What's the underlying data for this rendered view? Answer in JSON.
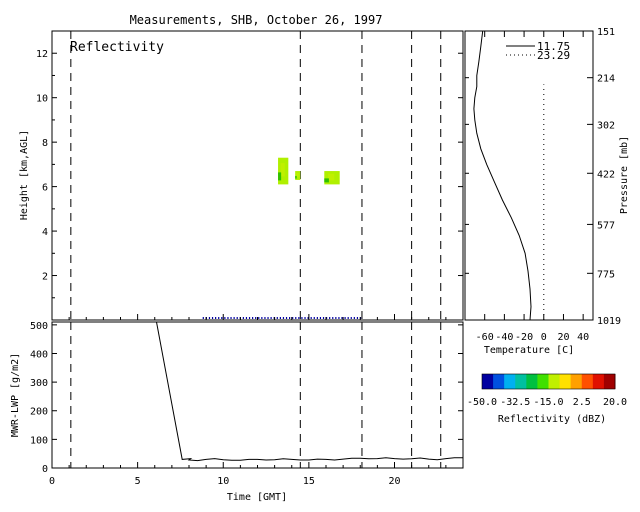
{
  "title": "Measurements, SHB, October 26, 1997",
  "colors": {
    "background": "#ffffff",
    "axes": "#000000",
    "colorbar": [
      "#0000a0",
      "#0050e0",
      "#00b0f0",
      "#00c0a0",
      "#00c040",
      "#40e000",
      "#c0f000",
      "#ffe000",
      "#ffa000",
      "#ff5000",
      "#e01000",
      "#a00000"
    ]
  },
  "chart_data": [
    {
      "type": "heatmap",
      "panel_label": "Reflectivity",
      "ylabel": "Height [km,AGL]",
      "xlim": [
        0,
        24
      ],
      "ylim": [
        0,
        13
      ],
      "yticks": [
        "2",
        "4",
        "6",
        "8",
        "10",
        "12"
      ],
      "right_axis": {
        "label": "Pressure [mb]",
        "ticks": [
          {
            "label": "151",
            "h": 13.0
          },
          {
            "label": "214",
            "h": 10.9
          },
          {
            "label": "302",
            "h": 8.8
          },
          {
            "label": "422",
            "h": 6.6
          },
          {
            "label": "577",
            "h": 4.3
          },
          {
            "label": "775",
            "h": 2.1
          },
          {
            "label": "1019",
            "h": 0.0
          }
        ]
      },
      "echoes": [
        {
          "x": [
            13.2,
            13.8
          ],
          "y": [
            6.1,
            7.3
          ],
          "dbz": -10
        },
        {
          "x": [
            14.2,
            14.5
          ],
          "y": [
            6.3,
            6.7
          ],
          "dbz": -15
        },
        {
          "x": [
            15.9,
            16.8
          ],
          "y": [
            6.1,
            6.7
          ],
          "dbz": -12
        }
      ],
      "near_surface_echo": {
        "x": [
          8.8,
          18.0
        ],
        "y": 0.0,
        "dbz": -45
      },
      "dashed_time_lines": [
        1.1,
        14.5,
        18.1,
        21.0,
        22.7
      ]
    },
    {
      "type": "line",
      "ylabel": "MWR-LWP [g/m2]",
      "xlabel": "Time [GMT]",
      "xticks": [
        "0",
        "5",
        "10",
        "15",
        "20"
      ],
      "yticks": [
        "0",
        "100",
        "200",
        "300",
        "400",
        "500"
      ],
      "xlim": [
        0,
        24
      ],
      "ylim": [
        0,
        510
      ],
      "x": [
        6.1,
        7.6,
        8.0,
        9.0,
        10.0,
        11.0,
        12.0,
        13.0,
        14.0,
        15.0,
        16.0,
        17.0,
        18.0,
        19.0,
        20.0,
        21.0,
        22.0,
        23.0,
        24.0
      ],
      "values": [
        510,
        30,
        28,
        30,
        29,
        27,
        30,
        29,
        30,
        28,
        30,
        31,
        34,
        33,
        33,
        32,
        31,
        33,
        36
      ],
      "dashed_time_lines": [
        1.1,
        14.5,
        18.1,
        21.0,
        22.7
      ]
    },
    {
      "type": "line",
      "xlabel": "Temperature [C]",
      "ylim": [
        0,
        13
      ],
      "xlim": [
        -80,
        50
      ],
      "xticks": [
        "-60",
        "-40",
        "-20",
        "0",
        "20",
        "40"
      ],
      "series": [
        {
          "name": "11.75",
          "style": "solid",
          "x": [
            -62,
            -64,
            -66,
            -68,
            -68,
            -70,
            -71,
            -70,
            -68,
            -64,
            -58,
            -50,
            -42,
            -33,
            -25,
            -19,
            -16,
            -14,
            -13,
            -14
          ],
          "y": [
            13.0,
            12.3,
            11.6,
            11.0,
            10.5,
            10.0,
            9.5,
            9.0,
            8.4,
            7.7,
            7.0,
            6.2,
            5.4,
            4.6,
            3.8,
            3.0,
            2.2,
            1.4,
            0.6,
            0.0
          ]
        },
        {
          "name": "23.29",
          "style": "dotted",
          "x": [
            0,
            0
          ],
          "y": [
            0.0,
            10.6
          ]
        }
      ]
    },
    {
      "type": "heatmap",
      "role": "colorbar",
      "label": "Reflectivity (dBZ)",
      "range": [
        -50,
        20
      ],
      "ticks": [
        "-50.0",
        "-32.5",
        "-15.0",
        "2.5",
        "20.0"
      ]
    }
  ]
}
